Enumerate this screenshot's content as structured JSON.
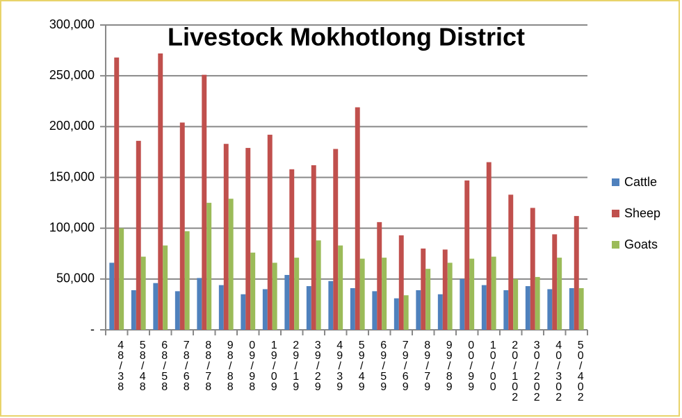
{
  "chart_data": {
    "type": "bar",
    "title": "Livestock Mokhotlong District",
    "categories": [
      "48/38",
      "58/48",
      "68/58",
      "78/68",
      "88/78",
      "98/88",
      "09/98",
      "19/09",
      "29/19",
      "39/29",
      "49/39",
      "59/49",
      "69/59",
      "79/69",
      "89/79",
      "99/89",
      "00/99",
      "10/00",
      "20/102",
      "30/202",
      "40/302",
      "50/402"
    ],
    "series": [
      {
        "name": "Cattle",
        "color": "#4f81bd",
        "values": [
          66000,
          39000,
          46000,
          38000,
          51000,
          44000,
          35000,
          40000,
          54000,
          43000,
          48000,
          41000,
          38000,
          31000,
          39000,
          35000,
          50000,
          44000,
          39000,
          43000,
          40000,
          41000
        ]
      },
      {
        "name": "Sheep",
        "color": "#c0504d",
        "values": [
          268000,
          186000,
          272000,
          204000,
          251000,
          183000,
          179000,
          192000,
          158000,
          162000,
          178000,
          219000,
          106000,
          93000,
          80000,
          79000,
          147000,
          165000,
          133000,
          120000,
          94000,
          112000
        ]
      },
      {
        "name": "Goats",
        "color": "#9bbb59",
        "values": [
          100000,
          72000,
          83000,
          97000,
          125000,
          129000,
          76000,
          66000,
          71000,
          88000,
          83000,
          70000,
          71000,
          34000,
          60000,
          66000,
          70000,
          72000,
          50000,
          52000,
          71000,
          41000
        ]
      }
    ],
    "ylim": [
      0,
      300000
    ],
    "yticks": [
      {
        "value": 0,
        "label": "-"
      },
      {
        "value": 50000,
        "label": "50,000"
      },
      {
        "value": 100000,
        "label": "100,000"
      },
      {
        "value": 150000,
        "label": "150,000"
      },
      {
        "value": 200000,
        "label": "200,000"
      },
      {
        "value": 250000,
        "label": "250,000"
      },
      {
        "value": 300000,
        "label": "300,000"
      }
    ],
    "grid": true,
    "legend": "right"
  }
}
